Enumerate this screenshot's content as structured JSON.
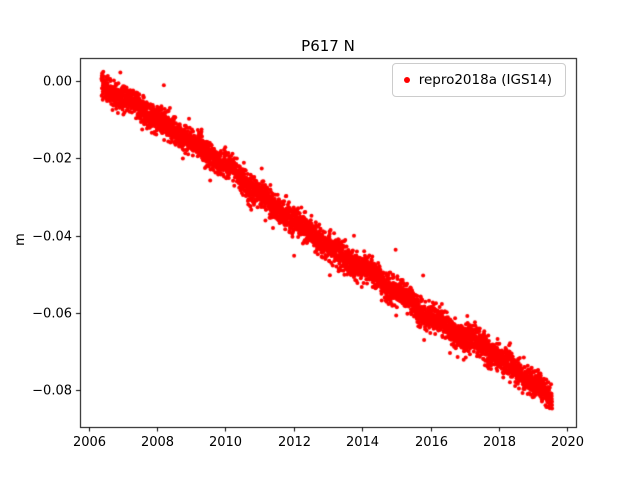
{
  "chart_data": {
    "type": "scatter",
    "title": "P617 N",
    "xlabel": "",
    "ylabel": "m",
    "legend_label": "repro2018a (IGS14)",
    "legend_position": "upper right",
    "marker_color": "#ff0000",
    "grid": false,
    "xlim": [
      2005.75,
      2020.25
    ],
    "ylim": [
      -0.0895,
      0.006
    ],
    "xticks": [
      2006,
      2008,
      2010,
      2012,
      2014,
      2016,
      2018,
      2020
    ],
    "xtick_labels": [
      "2006",
      "2008",
      "2010",
      "2012",
      "2014",
      "2016",
      "2018",
      "2020"
    ],
    "yticks": [
      0.0,
      -0.02,
      -0.04,
      -0.06,
      -0.08
    ],
    "ytick_labels": [
      "0.00",
      "−0.02",
      "−0.04",
      "−0.06",
      "−0.08"
    ],
    "x_start": 2006.38,
    "x_end": 2019.55,
    "n_points": 4600,
    "noise_std": 0.0017,
    "outlier_fraction": 0.012,
    "seed": 42,
    "series": [
      {
        "name": "repro2018a (IGS14)",
        "trend_anchors": {
          "x": [
            2006.38,
            2006.7,
            2007.0,
            2007.4,
            2007.8,
            2008.1,
            2008.5,
            2008.9,
            2009.3,
            2009.7,
            2010.0,
            2010.25,
            2010.6,
            2011.0,
            2011.4,
            2011.8,
            2012.2,
            2012.6,
            2013.0,
            2013.4,
            2013.8,
            2014.2,
            2014.6,
            2015.0,
            2015.4,
            2015.8,
            2016.1,
            2016.5,
            2016.9,
            2017.3,
            2017.7,
            2018.1,
            2018.5,
            2018.9,
            2019.2,
            2019.55
          ],
          "y": [
            -0.001,
            -0.003,
            -0.0045,
            -0.006,
            -0.009,
            -0.0105,
            -0.013,
            -0.015,
            -0.0175,
            -0.02,
            -0.021,
            -0.0235,
            -0.0265,
            -0.029,
            -0.0325,
            -0.034,
            -0.0375,
            -0.04,
            -0.0425,
            -0.0455,
            -0.047,
            -0.0495,
            -0.052,
            -0.0545,
            -0.0565,
            -0.06,
            -0.0615,
            -0.0635,
            -0.066,
            -0.0675,
            -0.0695,
            -0.072,
            -0.0745,
            -0.0775,
            -0.0795,
            -0.082
          ]
        }
      }
    ]
  }
}
